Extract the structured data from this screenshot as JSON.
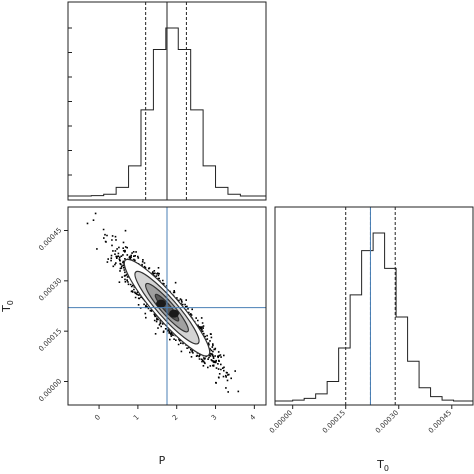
{
  "chart_data": [
    {
      "type": "histogram",
      "panel": "top-left",
      "variable": "P",
      "xlim": [
        -0.8,
        4.3
      ],
      "bins_x": [
        -0.2,
        0.12,
        0.44,
        0.76,
        1.08,
        1.4,
        1.72,
        2.04,
        2.36,
        2.68,
        3.0,
        3.32,
        3.64
      ],
      "counts": [
        0.5,
        2,
        10,
        35,
        100,
        170,
        195,
        170,
        100,
        35,
        10,
        2
      ],
      "quantiles": [
        1.2,
        1.75,
        2.25
      ],
      "median": 1.75
    },
    {
      "type": "scatter",
      "panel": "bottom-left",
      "x_variable": "P",
      "y_variable": "T0",
      "xlim": [
        -0.8,
        4.3
      ],
      "ylim": [
        -7e-05,
        0.00052
      ],
      "x_ticks": [
        "0",
        "1",
        "2",
        "3",
        "4"
      ],
      "x_tick_values": [
        0,
        1,
        2,
        3,
        4
      ],
      "y_ticks": [
        "0.00000",
        "0.00015",
        "0.00030",
        "0.00045"
      ],
      "y_tick_values": [
        0.0,
        0.00015,
        0.0003,
        0.00045
      ],
      "xlabel": "P",
      "ylabel": "T0",
      "truth": {
        "x": 1.75,
        "y": 0.00022
      },
      "center": {
        "x": 1.75,
        "y": 0.00022
      },
      "sigma": {
        "x": 0.55,
        "y": 7.2e-05
      },
      "correlation": -0.92
    },
    {
      "type": "histogram",
      "panel": "bottom-right",
      "variable": "T0",
      "xlim": [
        -5e-05,
        0.00051
      ],
      "bins_x": [
        0.0,
        3.25e-05,
        6.5e-05,
        9.75e-05,
        0.00013,
        0.0001625,
        0.000195,
        0.0002275,
        0.00026,
        0.0002925,
        0.000325,
        0.0003575,
        0.00039,
        0.0004225,
        0.000455
      ],
      "counts": [
        1,
        3,
        8,
        22,
        60,
        120,
        170,
        190,
        150,
        95,
        45,
        15,
        5,
        1
      ],
      "quantiles": [
        0.00015,
        0.00022,
        0.00029
      ],
      "median": 0.00022,
      "truth": 0.00022,
      "x_ticks": [
        "0.00000",
        "0.00015",
        "0.00030",
        "0.00045"
      ],
      "x_tick_values": [
        0.0,
        0.00015,
        0.0003,
        0.00045
      ],
      "xlabel": "T0"
    }
  ],
  "colors": {
    "truth_line": "#4a7fb5",
    "frame": "#222222",
    "density": "#000000"
  }
}
